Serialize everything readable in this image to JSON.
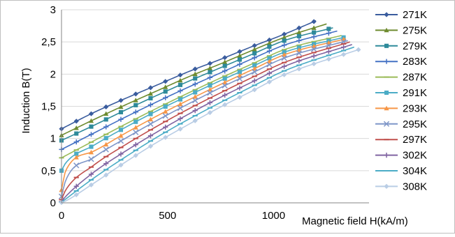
{
  "chart_data": {
    "type": "line",
    "title": "",
    "xlabel": "Magnetic field H(kA/m)",
    "ylabel": "Induction B(T)",
    "xlim": [
      0,
      1450
    ],
    "ylim": [
      0,
      3
    ],
    "x_ticks": [
      0,
      500,
      1000
    ],
    "x_tick_labels": [
      "0",
      "500",
      "1000"
    ],
    "y_ticks": [
      0,
      0.5,
      1,
      1.5,
      2,
      2.5,
      3
    ],
    "y_tick_labels": [
      "0",
      "0,5",
      "1",
      "1,5",
      "2",
      "2,5",
      "3"
    ],
    "grid": "horizontal",
    "legend_position": "right",
    "series": [
      {
        "name": "271K",
        "color": "#3A5C9E",
        "marker": "diamond",
        "x": [
          0,
          150,
          300,
          450,
          600,
          750,
          900,
          1050,
          1200
        ],
        "y": [
          1.15,
          1.4,
          1.62,
          1.83,
          2.04,
          2.23,
          2.43,
          2.62,
          2.83
        ]
      },
      {
        "name": "275K",
        "color": "#6E8B2F",
        "marker": "triangle",
        "x": [
          0,
          150,
          300,
          450,
          600,
          750,
          900,
          1050,
          1250
        ],
        "y": [
          1.05,
          1.29,
          1.52,
          1.74,
          1.96,
          2.16,
          2.37,
          2.57,
          2.78
        ]
      },
      {
        "name": "279K",
        "color": "#2E8A9A",
        "marker": "square",
        "x": [
          0,
          150,
          300,
          450,
          600,
          750,
          900,
          1050,
          1280
        ],
        "y": [
          0.97,
          1.2,
          1.44,
          1.67,
          1.89,
          2.1,
          2.31,
          2.52,
          2.72
        ]
      },
      {
        "name": "283K",
        "color": "#4471C4",
        "marker": "plus",
        "x": [
          0,
          150,
          300,
          450,
          600,
          750,
          900,
          1050,
          1300
        ],
        "y": [
          0.83,
          1.08,
          1.33,
          1.57,
          1.8,
          2.02,
          2.24,
          2.45,
          2.67
        ]
      },
      {
        "name": "287K",
        "color": "#9BBB59",
        "marker": "dash",
        "x": [
          0,
          150,
          300,
          450,
          600,
          750,
          900,
          1050,
          1320
        ],
        "y": [
          0.7,
          0.96,
          1.22,
          1.47,
          1.71,
          1.94,
          2.16,
          2.38,
          2.6
        ]
      },
      {
        "name": "291K",
        "color": "#4BACC6",
        "marker": "square",
        "x": [
          0,
          20,
          150,
          300,
          450,
          600,
          750,
          900,
          1050,
          1330
        ],
        "y": [
          0.5,
          0.62,
          0.89,
          1.17,
          1.43,
          1.67,
          1.9,
          2.12,
          2.34,
          2.57
        ]
      },
      {
        "name": "293K",
        "color": "#F79646",
        "marker": "triangle",
        "x": [
          0,
          20,
          150,
          300,
          450,
          600,
          750,
          900,
          1050,
          1340
        ],
        "y": [
          0.2,
          0.5,
          0.8,
          1.08,
          1.35,
          1.6,
          1.84,
          2.07,
          2.3,
          2.55
        ]
      },
      {
        "name": "295K",
        "color": "#7F96C8",
        "marker": "x",
        "x": [
          0,
          20,
          150,
          300,
          450,
          600,
          750,
          900,
          1050,
          1350
        ],
        "y": [
          0.1,
          0.35,
          0.7,
          1.0,
          1.28,
          1.54,
          1.79,
          2.02,
          2.25,
          2.52
        ]
      },
      {
        "name": "297K",
        "color": "#C0504D",
        "marker": "dash",
        "x": [
          0,
          20,
          150,
          300,
          450,
          600,
          750,
          900,
          1050,
          1360
        ],
        "y": [
          0.05,
          0.2,
          0.58,
          0.9,
          1.19,
          1.46,
          1.71,
          1.95,
          2.18,
          2.5
        ]
      },
      {
        "name": "302K",
        "color": "#8064A2",
        "marker": "plus",
        "x": [
          0,
          20,
          150,
          300,
          450,
          600,
          750,
          900,
          1050,
          1370
        ],
        "y": [
          0.02,
          0.1,
          0.47,
          0.8,
          1.1,
          1.38,
          1.64,
          1.88,
          2.12,
          2.46
        ]
      },
      {
        "name": "304K",
        "color": "#4BACC6",
        "marker": "dash",
        "x": [
          0,
          20,
          150,
          300,
          450,
          600,
          750,
          900,
          1050,
          1380
        ],
        "y": [
          0.01,
          0.06,
          0.38,
          0.71,
          1.02,
          1.3,
          1.56,
          1.81,
          2.05,
          2.42
        ]
      },
      {
        "name": "308K",
        "color": "#B9CDE5",
        "marker": "diamond",
        "x": [
          0,
          20,
          150,
          300,
          450,
          600,
          750,
          900,
          1050,
          1400
        ],
        "y": [
          0.005,
          0.03,
          0.3,
          0.63,
          0.94,
          1.22,
          1.49,
          1.74,
          1.99,
          2.38
        ]
      }
    ]
  }
}
